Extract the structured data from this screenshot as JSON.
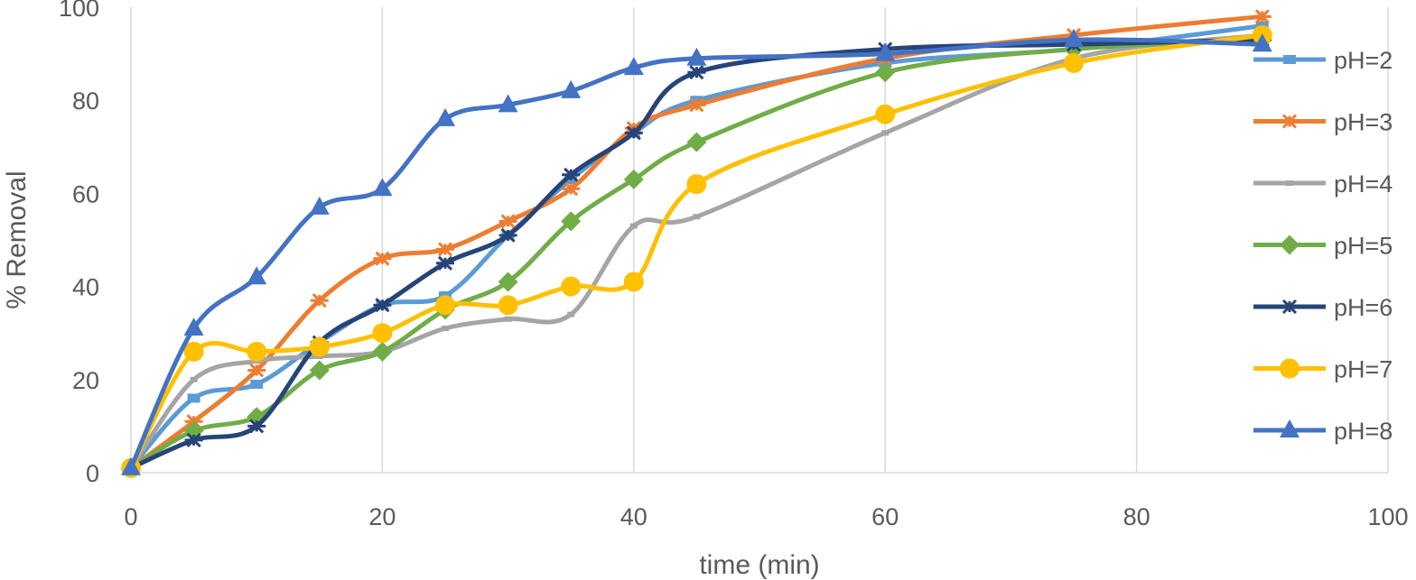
{
  "chart_data": {
    "type": "line",
    "xlabel": "time (min)",
    "ylabel": "% Removal",
    "xlim": [
      0,
      100
    ],
    "ylim": [
      0,
      100
    ],
    "x_ticks": [
      "0",
      "20",
      "40",
      "60",
      "80",
      "100"
    ],
    "y_ticks": [
      "0",
      "20",
      "40",
      "60",
      "80",
      "100"
    ],
    "grid": "vertical",
    "legend_position": "right",
    "x": [
      0,
      5,
      10,
      15,
      20,
      25,
      30,
      35,
      40,
      45,
      60,
      75,
      90
    ],
    "series": [
      {
        "name": "pH=2",
        "color": "#5B9BD5",
        "marker": "square",
        "values": [
          1,
          16,
          19,
          28,
          36,
          38,
          51,
          63,
          73,
          80,
          88,
          91,
          96
        ]
      },
      {
        "name": "pH=3",
        "color": "#ED7D31",
        "marker": "star",
        "values": [
          1,
          11,
          22,
          37,
          46,
          48,
          54,
          61,
          74,
          79,
          89,
          94,
          98
        ]
      },
      {
        "name": "pH=4",
        "color": "#A5A5A5",
        "marker": "dash",
        "values": [
          1,
          20,
          24,
          25,
          26,
          31,
          33,
          34,
          53,
          55,
          73,
          89,
          94
        ]
      },
      {
        "name": "pH=5",
        "color": "#70AD47",
        "marker": "diamond",
        "values": [
          1,
          9,
          12,
          22,
          26,
          35,
          41,
          54,
          63,
          71,
          86,
          91,
          93
        ]
      },
      {
        "name": "pH=6",
        "color": "#264478",
        "marker": "star",
        "values": [
          1,
          7,
          10,
          28,
          36,
          45,
          51,
          64,
          73,
          86,
          91,
          92,
          93
        ]
      },
      {
        "name": "pH=7",
        "color": "#FFC000",
        "marker": "circle",
        "values": [
          1,
          26,
          26,
          27,
          30,
          36,
          36,
          40,
          41,
          62,
          77,
          88,
          94
        ]
      },
      {
        "name": "pH=8",
        "color": "#4472C4",
        "marker": "triangle",
        "values": [
          1,
          31,
          42,
          57,
          61,
          76,
          79,
          82,
          87,
          89,
          90,
          93,
          92
        ]
      }
    ]
  }
}
